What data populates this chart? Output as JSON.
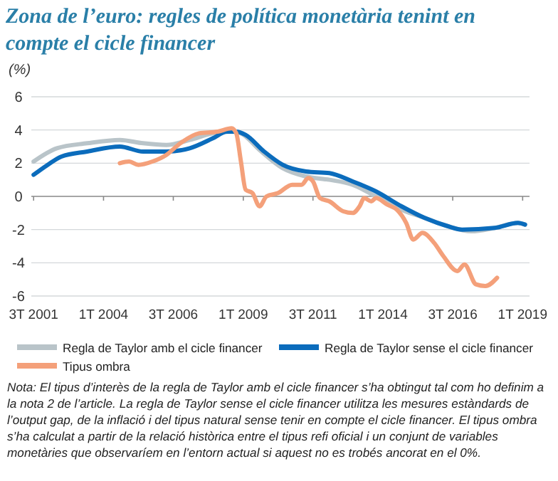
{
  "chart_data": {
    "type": "line",
    "title": "Zona de l’euro: regles de política monetària tenint en compte el cicle financer",
    "ylabel": "(%)",
    "xlim": [
      "2001-06",
      "2019-04"
    ],
    "ylim": [
      -6,
      6
    ],
    "yticks": [
      -6,
      -4,
      -2,
      0,
      2,
      4,
      6
    ],
    "xticks": [
      {
        "value": "2001-07",
        "label": "3T 2001"
      },
      {
        "value": "2004-01",
        "label": "1T 2004"
      },
      {
        "value": "2006-07",
        "label": "3T 2006"
      },
      {
        "value": "2009-01",
        "label": "1T 2009"
      },
      {
        "value": "2011-07",
        "label": "3T 2011"
      },
      {
        "value": "2014-01",
        "label": "1T 2014"
      },
      {
        "value": "2016-07",
        "label": "3T 2016"
      },
      {
        "value": "2019-01",
        "label": "1T 2019"
      }
    ],
    "grid": "y",
    "legend": "bottom",
    "line_style": "solid",
    "series": [
      {
        "name": "Regla de Taylor amb el cicle financer",
        "color": "#b9c4c9",
        "x": [
          "2001-07",
          "2002-05",
          "2003-06",
          "2004-08",
          "2005-06",
          "2006-04",
          "2007-02",
          "2007-12",
          "2008-08",
          "2008-12",
          "2009-08",
          "2010-06",
          "2011-04",
          "2012-02",
          "2012-12",
          "2013-10",
          "2014-09",
          "2015-07",
          "2016-05",
          "2017-03",
          "2018-01",
          "2018-11",
          "2019-02"
        ],
        "values": [
          2.1,
          2.9,
          3.2,
          3.4,
          3.2,
          3.1,
          3.4,
          3.8,
          3.9,
          3.8,
          2.8,
          1.7,
          1.2,
          1.0,
          0.7,
          0,
          -0.8,
          -1.3,
          -1.8,
          -2.1,
          -1.9,
          -1.6,
          -1.7
        ]
      },
      {
        "name": "Regla de Taylor sense el cicle financer",
        "color": "#0b6cbc",
        "x": [
          "2001-07",
          "2002-01",
          "2002-07",
          "2003-06",
          "2004-08",
          "2005-06",
          "2006-04",
          "2007-02",
          "2007-12",
          "2008-06",
          "2008-10",
          "2009-02",
          "2009-10",
          "2010-06",
          "2011-04",
          "2012-02",
          "2012-12",
          "2013-10",
          "2014-09",
          "2015-07",
          "2016-05",
          "2016-11",
          "2018-01",
          "2018-11",
          "2019-02"
        ],
        "values": [
          1.3,
          1.9,
          2.4,
          2.7,
          3.0,
          2.7,
          2.7,
          2.9,
          3.5,
          3.9,
          3.9,
          3.7,
          2.7,
          1.9,
          1.5,
          1.4,
          0.9,
          0.3,
          -0.6,
          -1.3,
          -1.8,
          -2.0,
          -1.9,
          -1.6,
          -1.7
        ]
      },
      {
        "name": "Tipus ombra",
        "color": "#f4a07a",
        "x": [
          "2004-08",
          "2004-12",
          "2005-04",
          "2005-10",
          "2006-04",
          "2006-10",
          "2007-06",
          "2008-02",
          "2008-08",
          "2008-10",
          "2008-12",
          "2009-02",
          "2009-05",
          "2009-08",
          "2009-11",
          "2010-04",
          "2010-10",
          "2011-02",
          "2011-05",
          "2011-07",
          "2011-10",
          "2012-02",
          "2012-08",
          "2012-12",
          "2013-03",
          "2013-05",
          "2013-08",
          "2013-10",
          "2014-03",
          "2014-07",
          "2014-11",
          "2015-02",
          "2015-06",
          "2015-11",
          "2016-03",
          "2016-09",
          "2016-12",
          "2017-05",
          "2017-09",
          "2018-02"
        ],
        "values": [
          2.0,
          2.1,
          1.9,
          2.1,
          2.5,
          3.2,
          3.8,
          3.9,
          4.1,
          3.8,
          2.1,
          0.4,
          0.2,
          -0.6,
          0,
          0.2,
          0.7,
          0.7,
          1.1,
          0.9,
          -0.1,
          -0.3,
          -0.9,
          -1.0,
          -0.6,
          -0.1,
          -0.3,
          -0.1,
          -0.5,
          -0.8,
          -1.6,
          -2.6,
          -2.2,
          -2.8,
          -3.6,
          -4.5,
          -4.1,
          -5.3,
          -5.4,
          -4.9
        ]
      }
    ],
    "annotations": [
      "Nota: El tipus d’interès de la regla de Taylor amb el cicle financer s’ha obtingut tal com ho definim a la nota 2 de l’article. La regla de Taylor sense el cicle financer utilitza les mesures estàndards de l’output gap, de la inflació i del tipus natural sense tenir en compte el cicle financer. El tipus ombra s’ha calculat a partir de la relació històrica entre el tipus refi oficial i un conjunt de variables monetàries que observaríem en l’entorn actual si aquest no es trobés ancorat en el 0%."
    ]
  }
}
